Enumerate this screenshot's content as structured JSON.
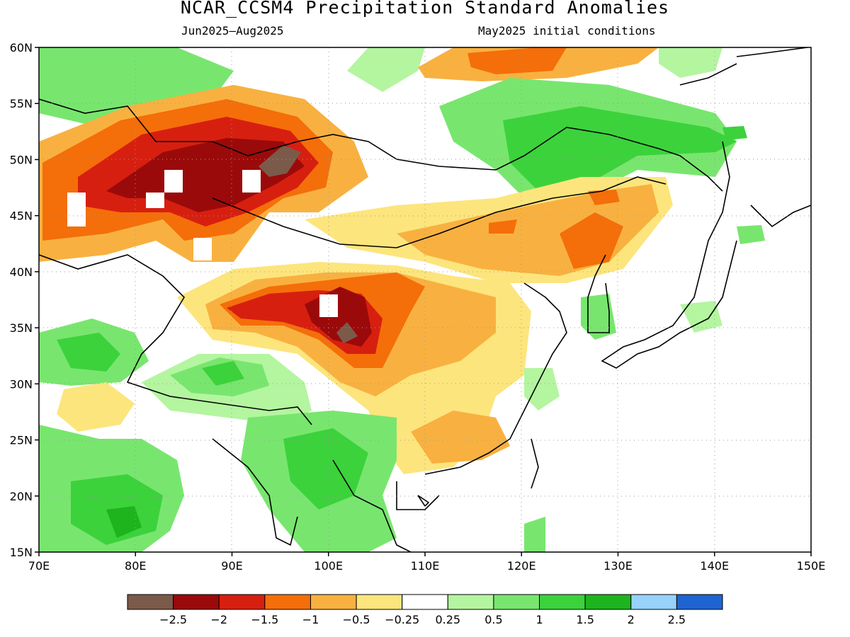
{
  "title": "NCAR_CCSM4 Precipitation Standard Anomalies",
  "period": "Jun2025–Aug2025",
  "init": "May2025 initial conditions",
  "lon_labels": [
    "70E",
    "80E",
    "90E",
    "100E",
    "110E",
    "120E",
    "130E",
    "140E",
    "150E"
  ],
  "lat_labels": [
    "60N",
    "55N",
    "50N",
    "45N",
    "40N",
    "35N",
    "30N",
    "25N",
    "20N",
    "15N"
  ],
  "colorbar": {
    "colors": [
      "#7b5a4a",
      "#9b0a0a",
      "#d71f10",
      "#f46e0a",
      "#f8b140",
      "#fde57d",
      "#ffffff",
      "#b4f5a0",
      "#78e66e",
      "#3cd23c",
      "#1eb41e",
      "#96d2fa",
      "#1e64d2"
    ],
    "labels": [
      "−2.5",
      "−2",
      "−1.5",
      "−1",
      "−0.5",
      "−0.25",
      "0.25",
      "0.5",
      "1",
      "1.5",
      "2",
      "2.5"
    ]
  }
}
